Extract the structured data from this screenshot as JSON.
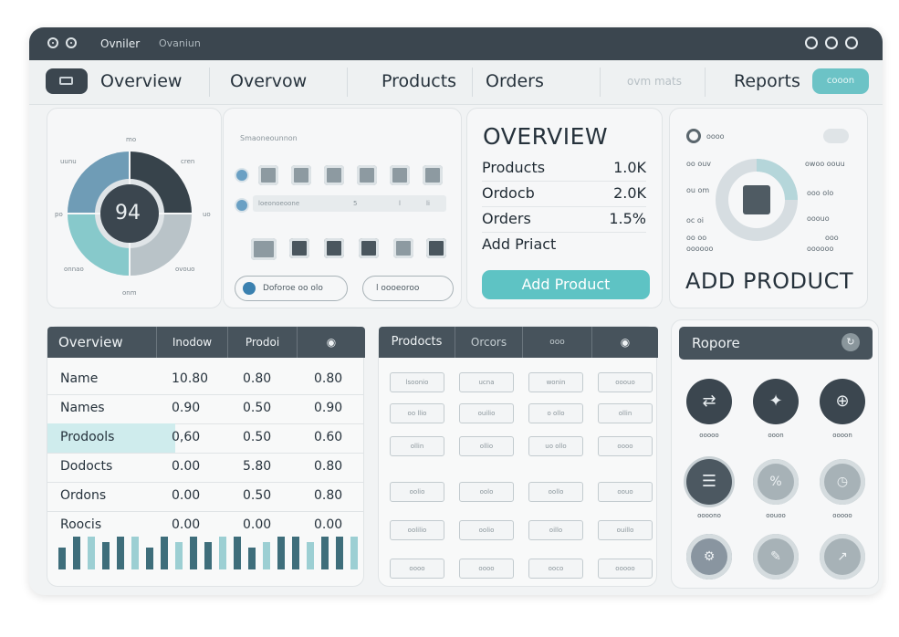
{
  "titlebar": {
    "title": "Ovniler",
    "subtitle": "Ovaniun"
  },
  "nav": {
    "items": [
      "Overview",
      "Overvow",
      "Products",
      "Orders",
      "Reports"
    ],
    "faded": "ovm mats",
    "pill": "cooon"
  },
  "donut": {
    "center": "94",
    "labels": [
      "mo",
      "uunu",
      "cren",
      "po",
      "uo",
      "onnao",
      "ovouo",
      "onm"
    ]
  },
  "icon_grid": {
    "title": "Smaoneounnon",
    "bar_text": "loeonoeoone",
    "bar_value": "5",
    "bar_value2": "l",
    "bar_value3": "li",
    "btn1": "Doforoe oo olo",
    "btn2": "l oooeoroo"
  },
  "overview": {
    "title": "OVERVIEW",
    "rows": [
      {
        "label": "Products",
        "value": "1.0K"
      },
      {
        "label": "Ordocb",
        "value": "2.0K"
      },
      {
        "label": "Orders",
        "value": "1.5%"
      },
      {
        "label": "Add Priact",
        "value": ""
      }
    ],
    "button": "Add Product"
  },
  "add_product": {
    "top_left": "oooo",
    "title": "ADD PRODUCT",
    "left_lines": [
      "oo ouv",
      "ou om",
      "oc oi",
      "oo oo",
      "oooooo"
    ],
    "right_lines": [
      "owoo oouu",
      "ooo olo",
      "ooouo",
      "ooo",
      "oooooo"
    ]
  },
  "table1": {
    "headers": [
      "Overview",
      "Inodow",
      "Prodoi",
      "ooo"
    ],
    "rows": [
      [
        "Name",
        "10.80",
        "0.80",
        "0.80"
      ],
      [
        "Names",
        "0.90",
        "0.50",
        "0.90"
      ],
      [
        "Prodools",
        "0,60",
        "0.50",
        "0.60"
      ],
      [
        "Dodocts",
        "0.00",
        "5.80",
        "0.80"
      ],
      [
        "Ordons",
        "0.00",
        "0.50",
        "0.80"
      ],
      [
        "Roocis",
        "0.00",
        "0.00",
        "0.00"
      ]
    ]
  },
  "table2": {
    "headers": [
      "Prodocts",
      "Orcors",
      "ooo",
      "o"
    ],
    "cells": [
      [
        "lsoonio",
        "ucna",
        "wonin",
        "ooouo"
      ],
      [
        "oo llio",
        "ouilio",
        "o ollo",
        "ollin"
      ],
      [
        "ollin",
        "ollio",
        "uo ollo",
        "oooo"
      ],
      [
        "oolio",
        "oolo",
        "oollo",
        "oouo"
      ],
      [
        "oolilio",
        "oolio",
        "oillo",
        "ouillo"
      ],
      [
        "oooo",
        "oooo",
        "ooco",
        "ooooo"
      ]
    ]
  },
  "reports": {
    "title": "Ropore",
    "labels": [
      "ooooo",
      "ooon",
      "oooon",
      "oooono",
      "oouoo",
      "ooooo"
    ]
  },
  "colors": {
    "accent": "#5ec3c4",
    "dark": "#3b464f",
    "panel": "#f6f7f8"
  }
}
